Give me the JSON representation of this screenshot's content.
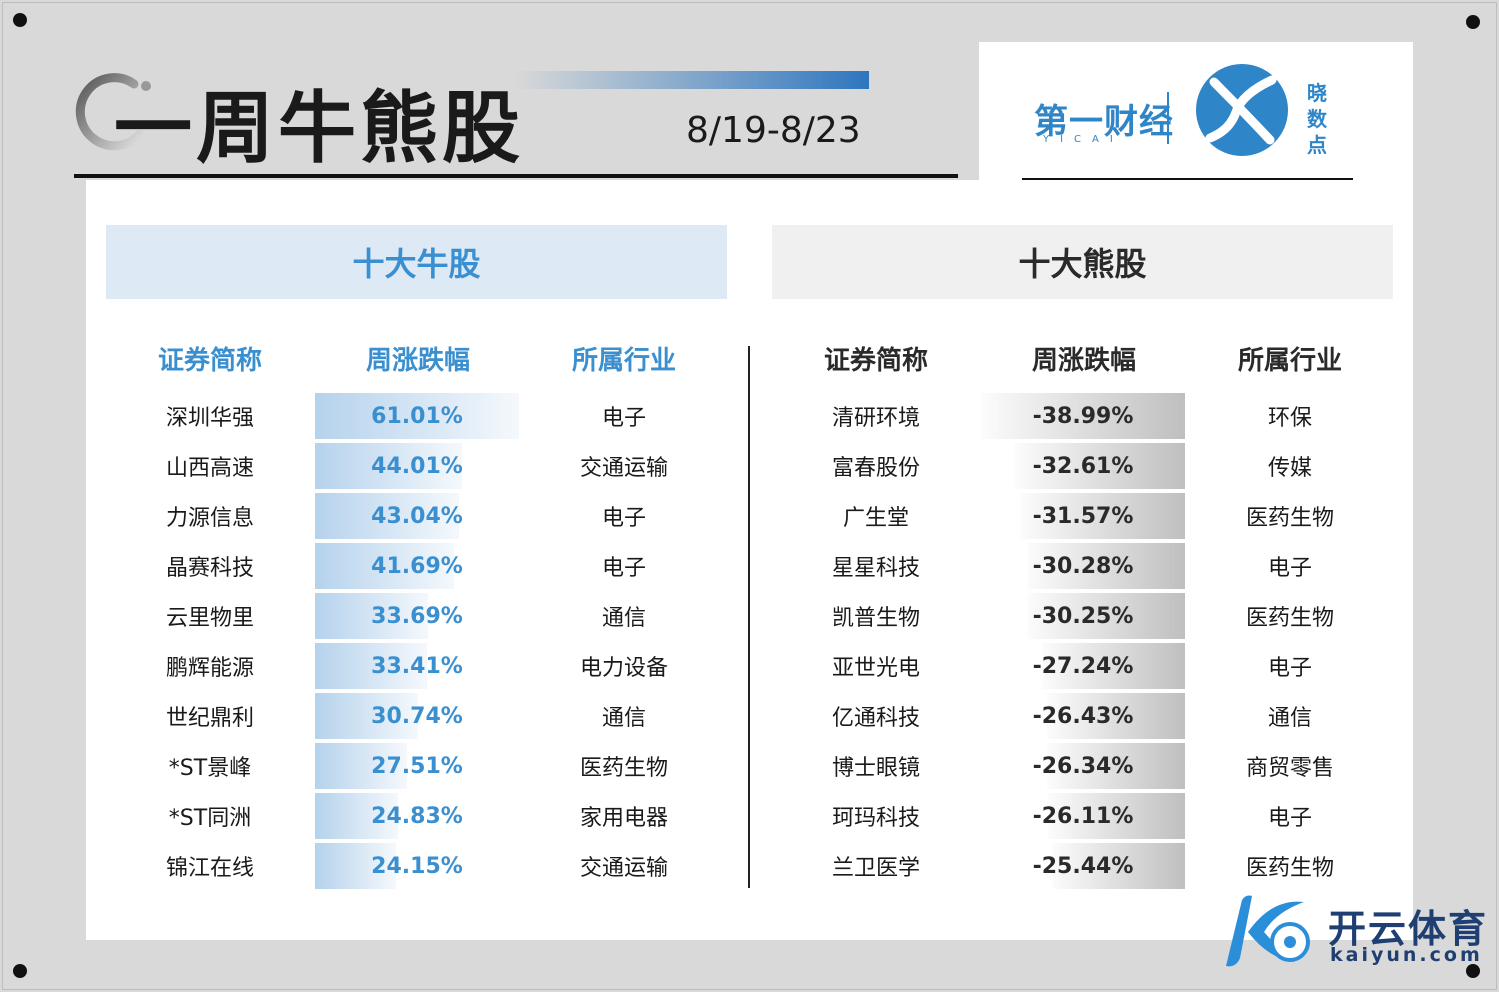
{
  "header": {
    "title": "一周牛熊股",
    "date_range": "8/19-8/23"
  },
  "branding": {
    "logo_left": "第一财经",
    "logo_left_sub": "YICAI",
    "logo_right": "晓数点",
    "watermark_title": "开云体育",
    "watermark_url": "kaiyun.com"
  },
  "colors": {
    "bull_accent": "#3a8fd0",
    "bull_header_bg": "#dde9f5",
    "bear_header_bg": "#f0f0f0",
    "brand_blue": "#2e86c9"
  },
  "chart_data": [
    {
      "type": "table",
      "title": "十大牛股",
      "columns": [
        "证券简称",
        "周涨跌幅",
        "所属行业"
      ],
      "rows": [
        [
          "深圳华强",
          "61.01%",
          "电子"
        ],
        [
          "山西高速",
          "44.01%",
          "交通运输"
        ],
        [
          "力源信息",
          "43.04%",
          "电子"
        ],
        [
          "晶赛科技",
          "41.69%",
          "电子"
        ],
        [
          "云里物里",
          "33.69%",
          "通信"
        ],
        [
          "鹏辉能源",
          "33.41%",
          "电力设备"
        ],
        [
          "世纪鼎利",
          "30.74%",
          "通信"
        ],
        [
          "*ST景峰",
          "27.51%",
          "医药生物"
        ],
        [
          "*ST同洲",
          "24.83%",
          "家用电器"
        ],
        [
          "锦江在线",
          "24.15%",
          "交通运输"
        ]
      ],
      "values": [
        61.01,
        44.01,
        43.04,
        41.69,
        33.69,
        33.41,
        30.74,
        27.51,
        24.83,
        24.15
      ]
    },
    {
      "type": "table",
      "title": "十大熊股",
      "columns": [
        "证券简称",
        "周涨跌幅",
        "所属行业"
      ],
      "rows": [
        [
          "清研环境",
          "-38.99%",
          "环保"
        ],
        [
          "富春股份",
          "-32.61%",
          "传媒"
        ],
        [
          "广生堂",
          "-31.57%",
          "医药生物"
        ],
        [
          "星星科技",
          "-30.28%",
          "电子"
        ],
        [
          "凯普生物",
          "-30.25%",
          "医药生物"
        ],
        [
          "亚世光电",
          "-27.24%",
          "电子"
        ],
        [
          "亿通科技",
          "-26.43%",
          "通信"
        ],
        [
          "博士眼镜",
          "-26.34%",
          "商贸零售"
        ],
        [
          "珂玛科技",
          "-26.11%",
          "电子"
        ],
        [
          "兰卫医学",
          "-25.44%",
          "医药生物"
        ]
      ],
      "values": [
        -38.99,
        -32.61,
        -31.57,
        -30.28,
        -30.25,
        -27.24,
        -26.43,
        -26.34,
        -26.11,
        -25.44
      ]
    }
  ]
}
